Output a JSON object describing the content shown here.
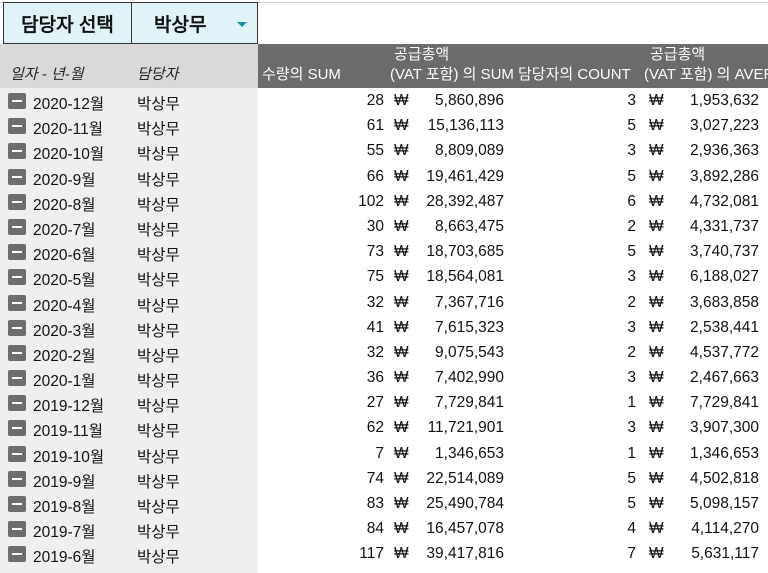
{
  "slicer": {
    "label": "담당자 선택",
    "value": "박상무"
  },
  "headers": {
    "date": "일자 - 년-월",
    "person": "담당자",
    "qty": "수량의 SUM",
    "sum_line1": "공급총액",
    "sum_line2": "(VAT 포함) 의 SUM",
    "count": "담당자의 COUNT",
    "avg_line1": "공급총액",
    "avg_line2": "(VAT 포함) 의 AVERAGE"
  },
  "currency": "₩",
  "rows": [
    {
      "date": "2020-12월",
      "person": "박상무",
      "qty": "28",
      "sum": "5,860,896",
      "count": "3",
      "avg": "1,953,632"
    },
    {
      "date": "2020-11월",
      "person": "박상무",
      "qty": "61",
      "sum": "15,136,113",
      "count": "5",
      "avg": "3,027,223"
    },
    {
      "date": "2020-10월",
      "person": "박상무",
      "qty": "55",
      "sum": "8,809,089",
      "count": "3",
      "avg": "2,936,363"
    },
    {
      "date": "2020-9월",
      "person": "박상무",
      "qty": "66",
      "sum": "19,461,429",
      "count": "5",
      "avg": "3,892,286"
    },
    {
      "date": "2020-8월",
      "person": "박상무",
      "qty": "102",
      "sum": "28,392,487",
      "count": "6",
      "avg": "4,732,081"
    },
    {
      "date": "2020-7월",
      "person": "박상무",
      "qty": "30",
      "sum": "8,663,475",
      "count": "2",
      "avg": "4,331,737"
    },
    {
      "date": "2020-6월",
      "person": "박상무",
      "qty": "73",
      "sum": "18,703,685",
      "count": "5",
      "avg": "3,740,737"
    },
    {
      "date": "2020-5월",
      "person": "박상무",
      "qty": "75",
      "sum": "18,564,081",
      "count": "3",
      "avg": "6,188,027"
    },
    {
      "date": "2020-4월",
      "person": "박상무",
      "qty": "32",
      "sum": "7,367,716",
      "count": "2",
      "avg": "3,683,858"
    },
    {
      "date": "2020-3월",
      "person": "박상무",
      "qty": "41",
      "sum": "7,615,323",
      "count": "3",
      "avg": "2,538,441"
    },
    {
      "date": "2020-2월",
      "person": "박상무",
      "qty": "32",
      "sum": "9,075,543",
      "count": "2",
      "avg": "4,537,772"
    },
    {
      "date": "2020-1월",
      "person": "박상무",
      "qty": "36",
      "sum": "7,402,990",
      "count": "3",
      "avg": "2,467,663"
    },
    {
      "date": "2019-12월",
      "person": "박상무",
      "qty": "27",
      "sum": "7,729,841",
      "count": "1",
      "avg": "7,729,841"
    },
    {
      "date": "2019-11월",
      "person": "박상무",
      "qty": "62",
      "sum": "11,721,901",
      "count": "3",
      "avg": "3,907,300"
    },
    {
      "date": "2019-10월",
      "person": "박상무",
      "qty": "7",
      "sum": "1,346,653",
      "count": "1",
      "avg": "1,346,653"
    },
    {
      "date": "2019-9월",
      "person": "박상무",
      "qty": "74",
      "sum": "22,514,089",
      "count": "5",
      "avg": "4,502,818"
    },
    {
      "date": "2019-8월",
      "person": "박상무",
      "qty": "83",
      "sum": "25,490,784",
      "count": "5",
      "avg": "5,098,157"
    },
    {
      "date": "2019-7월",
      "person": "박상무",
      "qty": "84",
      "sum": "16,457,078",
      "count": "4",
      "avg": "4,114,270"
    },
    {
      "date": "2019-6월",
      "person": "박상무",
      "qty": "117",
      "sum": "39,417,816",
      "count": "7",
      "avg": "5,631,117"
    }
  ]
}
